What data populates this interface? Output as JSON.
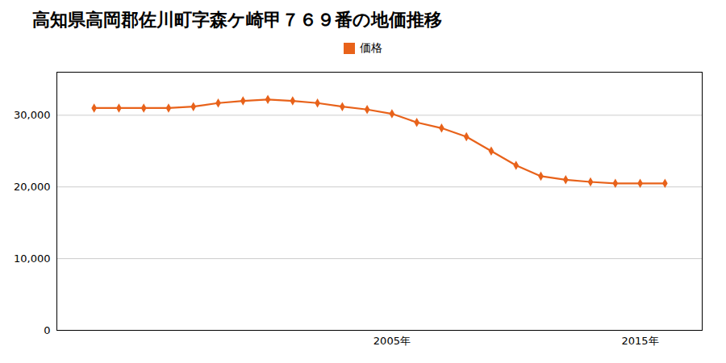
{
  "chart_data": {
    "type": "line",
    "title": "高知県高岡郡佐川町字森ケ崎甲７６９番の地価推移",
    "x": [
      1993,
      1994,
      1995,
      1996,
      1997,
      1998,
      1999,
      2000,
      2001,
      2002,
      2003,
      2004,
      2005,
      2006,
      2007,
      2008,
      2009,
      2010,
      2011,
      2012,
      2013,
      2014,
      2015,
      2016
    ],
    "series": [
      {
        "name": "価格",
        "color": "#e8621a",
        "marker": "diamond",
        "values": [
          31000,
          31000,
          31000,
          31000,
          31200,
          31700,
          32000,
          32200,
          32000,
          31700,
          31200,
          30800,
          30200,
          29000,
          28200,
          27000,
          25000,
          23000,
          21500,
          21000,
          20700,
          20500,
          20500,
          20500
        ]
      }
    ],
    "xlim": [
      1991.5,
      2017.5
    ],
    "xticks": [
      {
        "value": 2005,
        "label": "2005年"
      },
      {
        "value": 2015,
        "label": "2015年"
      }
    ],
    "ylim": [
      0,
      36000
    ],
    "yticks": [
      0,
      {
        "value": 10000,
        "label": "10,000"
      },
      {
        "value": 20000,
        "label": "20,000"
      },
      {
        "value": 30000,
        "label": "30,000"
      }
    ],
    "grid": "y",
    "legend": "top"
  }
}
